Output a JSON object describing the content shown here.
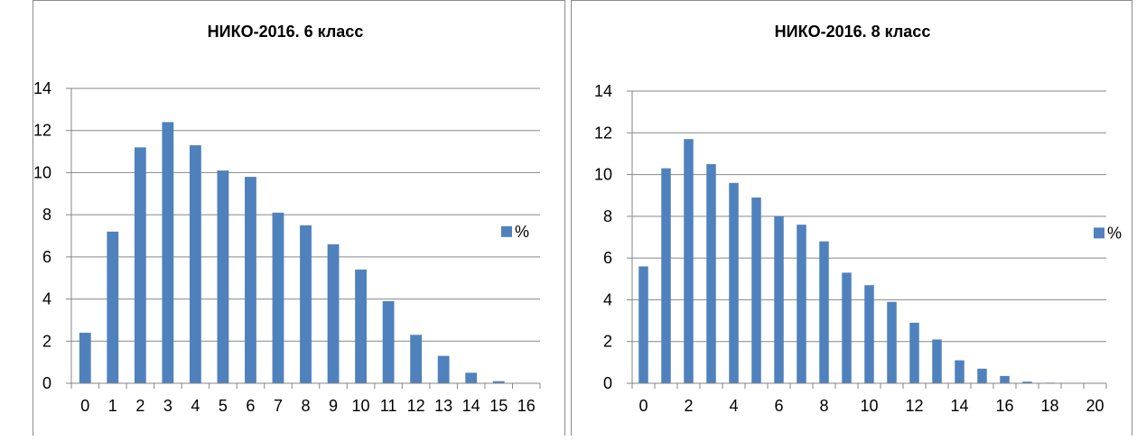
{
  "chart_data": [
    {
      "type": "bar",
      "title": "НИКО-2016. 6 класс",
      "categories": [
        "0",
        "1",
        "2",
        "3",
        "4",
        "5",
        "6",
        "7",
        "8",
        "9",
        "10",
        "11",
        "12",
        "13",
        "14",
        "15",
        "16"
      ],
      "series": [
        {
          "name": "%",
          "values": [
            2.4,
            7.2,
            11.2,
            12.4,
            11.3,
            10.1,
            9.8,
            8.1,
            7.5,
            6.6,
            5.4,
            3.9,
            2.3,
            1.3,
            0.5,
            0.1,
            0
          ]
        }
      ],
      "x_tick_labels": [
        "0",
        "1",
        "2",
        "3",
        "4",
        "5",
        "6",
        "7",
        "8",
        "9",
        "10",
        "11",
        "12",
        "13",
        "14",
        "15",
        "16"
      ],
      "y_tick_labels": [
        "0",
        "2",
        "4",
        "6",
        "8",
        "10",
        "12",
        "14"
      ],
      "ylim": [
        0,
        14
      ],
      "grid": true,
      "legend": "right",
      "bar_color": "#4f81bd"
    },
    {
      "type": "bar",
      "title": "НИКО-2016. 8 класс",
      "categories": [
        "0",
        "1",
        "2",
        "3",
        "4",
        "5",
        "6",
        "7",
        "8",
        "9",
        "10",
        "11",
        "12",
        "13",
        "14",
        "15",
        "16",
        "17",
        "18",
        "19",
        "20"
      ],
      "series": [
        {
          "name": "%",
          "values": [
            5.6,
            10.3,
            11.7,
            10.5,
            9.6,
            8.9,
            8.0,
            7.6,
            6.8,
            5.3,
            4.7,
            3.9,
            2.9,
            2.1,
            1.1,
            0.7,
            0.35,
            0.08,
            0.03,
            0.01,
            0
          ]
        }
      ],
      "x_tick_labels": [
        "0",
        "2",
        "4",
        "6",
        "8",
        "10",
        "12",
        "14",
        "16",
        "18",
        "20"
      ],
      "y_tick_labels": [
        "0",
        "2",
        "4",
        "6",
        "8",
        "10",
        "12",
        "14"
      ],
      "ylim": [
        0,
        14
      ],
      "grid": true,
      "legend": "right",
      "bar_color": "#4f81bd"
    }
  ]
}
